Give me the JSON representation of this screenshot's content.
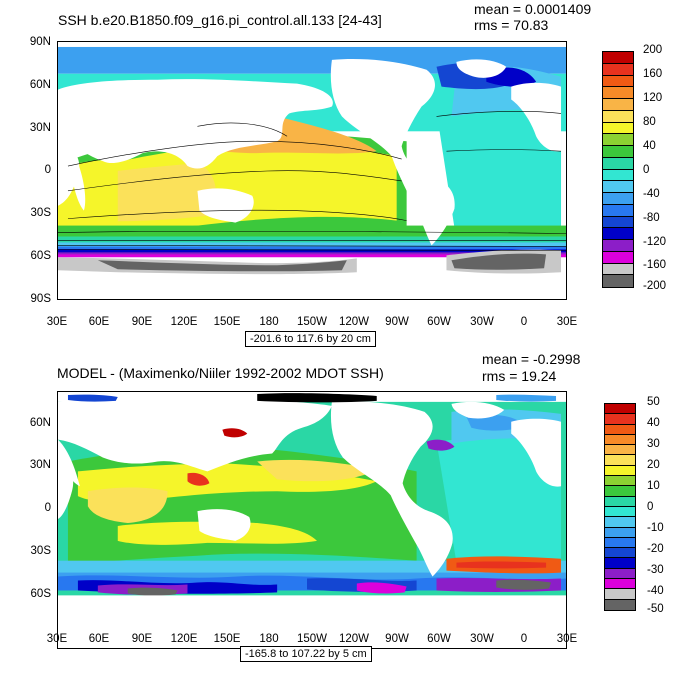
{
  "top": {
    "title": "SSH b.e20.B1850.f09_g16.pi_control.all.133 [24-43]",
    "mean": "mean = 0.0001409",
    "rms": "rms = 70.83",
    "lat_ticks": [
      "90N",
      "60N",
      "30N",
      "0",
      "30S",
      "60S",
      "90S"
    ],
    "lon_ticks": [
      "30E",
      "60E",
      "90E",
      "120E",
      "150E",
      "180",
      "150W",
      "120W",
      "90W",
      "60W",
      "30W",
      "0",
      "30E"
    ],
    "range_label": "-201.6 to 117.6 by 20 cm",
    "colorbar_labels": [
      "200",
      "160",
      "120",
      "80",
      "40",
      "0",
      "-40",
      "-80",
      "-120",
      "-160",
      "-200"
    ],
    "colorbar_colors": [
      "#c00000",
      "#e8321e",
      "#f05a14",
      "#f78b28",
      "#f9b446",
      "#fbe15a",
      "#f5f52a",
      "#8cd232",
      "#3cc83c",
      "#2ad7a5",
      "#32e6d2",
      "#50c8f0",
      "#3ca0f0",
      "#2878f0",
      "#1446d2",
      "#0000c8",
      "#8c1ec8",
      "#dc00dc",
      "#c8c8c8",
      "#646464"
    ]
  },
  "bottom": {
    "title": "MODEL - (Maximenko/Niiler 1992-2002 MDOT SSH)",
    "mean": "mean = -0.2998",
    "rms": "rms = 19.24",
    "lat_ticks": [
      "60N",
      "30N",
      "0",
      "30S",
      "60S"
    ],
    "lon_ticks": [
      "30E",
      "60E",
      "90E",
      "120E",
      "150E",
      "180",
      "150W",
      "120W",
      "90W",
      "60W",
      "30W",
      "0",
      "30E"
    ],
    "range_label": "-165.8 to 107.22 by 5 cm",
    "colorbar_labels": [
      "50",
      "40",
      "30",
      "20",
      "10",
      "0",
      "-10",
      "-20",
      "-30",
      "-40",
      "-50"
    ],
    "colorbar_colors": [
      "#c00000",
      "#e8321e",
      "#f05a14",
      "#f78b28",
      "#f9b446",
      "#fbe15a",
      "#f5f52a",
      "#8cd232",
      "#3cc83c",
      "#2ad7a5",
      "#32e6d2",
      "#50c8f0",
      "#3ca0f0",
      "#2878f0",
      "#1446d2",
      "#0000c8",
      "#8c1ec8",
      "#dc00dc",
      "#c8c8c8",
      "#646464"
    ]
  }
}
